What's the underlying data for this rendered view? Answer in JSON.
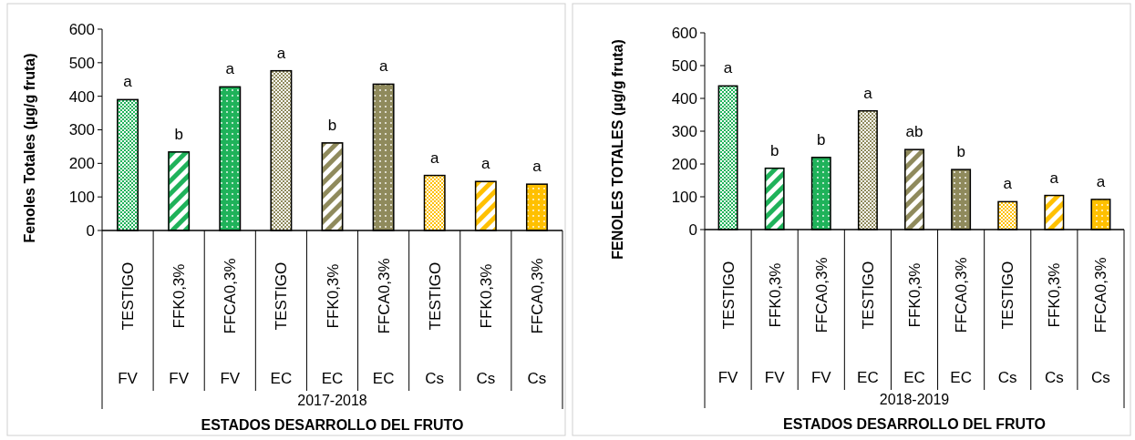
{
  "chart_data": [
    {
      "type": "bar",
      "ylabel": "Fenoles Totales (µg/g fruta)",
      "xlabel": "ESTADOS DESARROLLO DEL FRUTO",
      "categories": [
        "TESTIGO",
        "FFK0,3%",
        "FFCA0,3%",
        "TESTIGO",
        "FFK0,3%",
        "FFCA0,3%",
        "TESTIGO",
        "FFK0,3%",
        "FFCA0,3%"
      ],
      "values": [
        390,
        234,
        428,
        476,
        261,
        436,
        164,
        146,
        138
      ],
      "colors": [
        "#1fb25a",
        "#1fb25a",
        "#1fb25a",
        "#8f8a5c",
        "#8f8a5c",
        "#8f8a5c",
        "#ffc000",
        "#ffc000",
        "#ffc000"
      ],
      "value_labels": [
        "a",
        "b",
        "a",
        "a",
        "b",
        "a",
        "a",
        "a",
        "a"
      ],
      "annotations": [
        "FV",
        "FV",
        "FV",
        "EC",
        "EC",
        "EC",
        "Cs",
        "Cs",
        "Cs",
        "2017-2018"
      ],
      "ylim": [
        0,
        600
      ],
      "yticks": [
        0,
        100,
        200,
        300,
        400,
        500,
        600
      ],
      "grid": false
    },
    {
      "type": "bar",
      "ylabel": "FENOLES TOTALES (µg/g fruta)",
      "xlabel": "ESTADOS DESARROLLO DEL FRUTO",
      "categories": [
        "TESTIGO",
        "FFK0,3%",
        "FFCA0,3%",
        "TESTIGO",
        "FFK0,3%",
        "FFCA0,3%",
        "TESTIGO",
        "FFK0,3%",
        "FFCA0,3%"
      ],
      "values": [
        438,
        187,
        220,
        362,
        244,
        183,
        85,
        104,
        92
      ],
      "colors": [
        "#1fb25a",
        "#1fb25a",
        "#1fb25a",
        "#8f8a5c",
        "#8f8a5c",
        "#8f8a5c",
        "#ffc000",
        "#ffc000",
        "#ffc000"
      ],
      "value_labels": [
        "a",
        "b",
        "b",
        "a",
        "ab",
        "b",
        "a",
        "a",
        "a"
      ],
      "annotations": [
        "FV",
        "FV",
        "FV",
        "EC",
        "EC",
        "EC",
        "Cs",
        "Cs",
        "Cs",
        "2018-2019"
      ],
      "ylim": [
        0,
        600
      ],
      "yticks": [
        0,
        100,
        200,
        300,
        400,
        500,
        600
      ],
      "grid": false
    }
  ]
}
